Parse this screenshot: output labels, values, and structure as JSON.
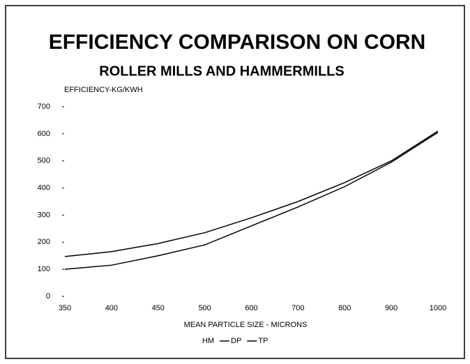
{
  "chart_data": {
    "type": "line",
    "title": "EFFICIENCY COMPARISON ON CORN",
    "subtitle": "ROLLER MILLS AND HAMMERMILLS",
    "y_label": "EFFICIENCY-KG/KWH",
    "x_label": "MEAN PARTICLE SIZE - MICRONS",
    "categories": [
      "350",
      "400",
      "450",
      "500",
      "600",
      "700",
      "800",
      "900",
      "1000"
    ],
    "series": [
      {
        "name": "HM",
        "color": "#000000",
        "values": [
          null,
          null,
          null,
          null,
          null,
          null,
          null,
          null,
          null
        ]
      },
      {
        "name": "DP",
        "color": "#000000",
        "values": [
          147,
          165,
          195,
          235,
          290,
          350,
          420,
          500,
          610
        ]
      },
      {
        "name": "TP",
        "color": "#000000",
        "values": [
          100,
          115,
          150,
          190,
          260,
          330,
          405,
          495,
          605
        ]
      }
    ],
    "ylim": [
      0,
      700
    ],
    "yticks": [
      0,
      100,
      200,
      300,
      400,
      500,
      600,
      700
    ]
  }
}
